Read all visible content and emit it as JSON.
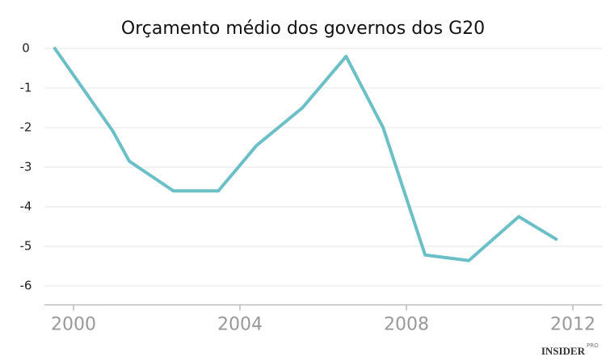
{
  "chart_data": {
    "type": "line",
    "title": "Orçamento médio dos governos dos G20",
    "x": [
      1999.55,
      2000.95,
      2001.34,
      2002.4,
      2003.48,
      2004.4,
      2005.5,
      2006.55,
      2007.44,
      2008.45,
      2009.5,
      2010.7,
      2011.6
    ],
    "series": [
      {
        "name": "Orçamento médio",
        "color": "#6bbfc6",
        "values": [
          0,
          -2.1,
          -2.85,
          -3.6,
          -3.6,
          -2.45,
          -1.5,
          -0.2,
          -2.0,
          -5.22,
          -5.36,
          -4.25,
          -4.82
        ]
      }
    ],
    "xlim": [
      1999.3,
      2012.7
    ],
    "xticks": [
      2000,
      2004,
      2008,
      2012
    ],
    "ylim": [
      -6.5,
      0.2
    ],
    "yticks": [
      0,
      -1,
      -2,
      -3,
      -4,
      -5,
      -6
    ],
    "grid": true,
    "watermark": "INSIDER",
    "watermark_sup": "PRO"
  }
}
